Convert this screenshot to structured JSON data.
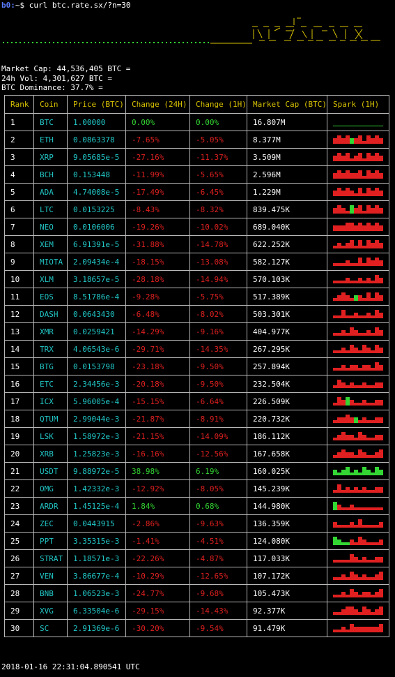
{
  "prompt": {
    "user": "b0:",
    "path": "~$",
    "command": "curl btc.rate.sx/?n=30"
  },
  "banner": {
    "ascii_art": [
      "  _ _ _ _ _ _ _ _ _ _  ",
      " |_)|_ (_|_ |_ (_/\\ ",
      " |_)|_ __|_|_ __)/\\_ "
    ],
    "left_dots_color": "#33d633",
    "art_color": "#d8c200"
  },
  "stats": {
    "market_cap": "Market Cap: 44,536,405 BTC =",
    "volume": "24h Vol: 4,301,627 BTC =",
    "dominance": "BTC Dominance: 37.7% ="
  },
  "table": {
    "headers": [
      "Rank",
      "Coin",
      "Price (BTC)",
      "Change (24H)",
      "Change (1H)",
      "Market Cap (BTC)",
      "Spark (1H)"
    ],
    "rows": [
      {
        "rank": "1",
        "coin": "BTC",
        "price": "1.00000",
        "ch24": "0.00%",
        "ch1": "0.00%",
        "cap": "16.807M",
        "spark": [
          0,
          0,
          0,
          0,
          0,
          0,
          0,
          0,
          0,
          0,
          0,
          0
        ]
      },
      {
        "rank": "2",
        "coin": "ETH",
        "price": "0.0863378",
        "ch24": "-7.65%",
        "ch1": "-5.05%",
        "cap": "8.377M",
        "spark": [
          -2,
          -3,
          -2,
          -3,
          2,
          -2,
          -3,
          -1,
          -3,
          -2,
          -3,
          -2
        ]
      },
      {
        "rank": "3",
        "coin": "XRP",
        "price": "9.05685e-5",
        "ch24": "-27.16%",
        "ch1": "-11.37%",
        "cap": "3.509M",
        "spark": [
          -2,
          -3,
          -2,
          -3,
          -1,
          -2,
          -3,
          -1,
          -3,
          -2,
          -3,
          -2
        ]
      },
      {
        "rank": "4",
        "coin": "BCH",
        "price": "0.153448",
        "ch24": "-11.99%",
        "ch1": "-5.65%",
        "cap": "2.596M",
        "spark": [
          -2,
          -3,
          -2,
          -3,
          -2,
          -2,
          -3,
          -1,
          -3,
          -2,
          -3,
          -2
        ]
      },
      {
        "rank": "5",
        "coin": "ADA",
        "price": "4.74008e-5",
        "ch24": "-17.49%",
        "ch1": "-6.45%",
        "cap": "1.229M",
        "spark": [
          -2,
          -3,
          -2,
          -3,
          -2,
          -1,
          -3,
          -1,
          -3,
          -2,
          -3,
          -2
        ]
      },
      {
        "rank": "6",
        "coin": "LTC",
        "price": "0.0153225",
        "ch24": "-8.43%",
        "ch1": "-8.32%",
        "cap": "839.475K",
        "spark": [
          -2,
          -3,
          -2,
          -1,
          3,
          -2,
          -3,
          -1,
          -3,
          -2,
          -3,
          -2
        ]
      },
      {
        "rank": "7",
        "coin": "NEO",
        "price": "0.0106006",
        "ch24": "-19.26%",
        "ch1": "-10.02%",
        "cap": "689.040K",
        "spark": [
          -2,
          -2,
          -2,
          -3,
          -3,
          -2,
          -3,
          -2,
          -3,
          -2,
          -3,
          -2
        ]
      },
      {
        "rank": "8",
        "coin": "XEM",
        "price": "6.91391e-5",
        "ch24": "-31.88%",
        "ch1": "-14.78%",
        "cap": "622.252K",
        "spark": [
          -1,
          -2,
          -1,
          -2,
          -3,
          -1,
          -3,
          -1,
          -3,
          -2,
          -3,
          -2
        ]
      },
      {
        "rank": "9",
        "coin": "MIOTA",
        "price": "2.09434e-4",
        "ch24": "-18.15%",
        "ch1": "-13.08%",
        "cap": "582.127K",
        "spark": [
          -1,
          -1,
          -1,
          -2,
          -1,
          -1,
          -3,
          -1,
          -3,
          -2,
          -3,
          -2
        ]
      },
      {
        "rank": "10",
        "coin": "XLM",
        "price": "3.18657e-5",
        "ch24": "-28.18%",
        "ch1": "-14.94%",
        "cap": "570.103K",
        "spark": [
          -1,
          -1,
          -1,
          -2,
          -1,
          -1,
          -2,
          -1,
          -2,
          -1,
          -3,
          -2
        ]
      },
      {
        "rank": "11",
        "coin": "EOS",
        "price": "8.51786e-4",
        "ch24": "-9.28%",
        "ch1": "-5.75%",
        "cap": "517.389K",
        "spark": [
          -1,
          -2,
          -3,
          -2,
          -1,
          2,
          -2,
          -1,
          -3,
          -1,
          -3,
          -2
        ]
      },
      {
        "rank": "12",
        "coin": "DASH",
        "price": "0.0643430",
        "ch24": "-6.48%",
        "ch1": "-8.02%",
        "cap": "503.301K",
        "spark": [
          -1,
          -1,
          -3,
          -1,
          -1,
          -2,
          -1,
          -1,
          -2,
          -1,
          -3,
          -2
        ]
      },
      {
        "rank": "13",
        "coin": "XMR",
        "price": "0.0259421",
        "ch24": "-14.29%",
        "ch1": "-9.16%",
        "cap": "404.977K",
        "spark": [
          -1,
          -1,
          -2,
          -1,
          -3,
          -2,
          -1,
          -1,
          -2,
          -1,
          -3,
          -2
        ]
      },
      {
        "rank": "14",
        "coin": "TRX",
        "price": "4.06543e-6",
        "ch24": "-29.71%",
        "ch1": "-14.35%",
        "cap": "267.295K",
        "spark": [
          -1,
          -1,
          -2,
          -1,
          -3,
          -2,
          -1,
          -3,
          -2,
          -1,
          -3,
          -2
        ]
      },
      {
        "rank": "15",
        "coin": "BTG",
        "price": "0.0153798",
        "ch24": "-23.18%",
        "ch1": "-9.50%",
        "cap": "257.894K",
        "spark": [
          -1,
          -1,
          -2,
          -1,
          -2,
          -2,
          -1,
          -2,
          -2,
          -1,
          -3,
          -2
        ]
      },
      {
        "rank": "16",
        "coin": "ETC",
        "price": "2.34456e-3",
        "ch24": "-20.18%",
        "ch1": "-9.50%",
        "cap": "232.504K",
        "spark": [
          -1,
          -3,
          -2,
          -1,
          -2,
          -1,
          -1,
          -2,
          -1,
          -1,
          -2,
          -2
        ]
      },
      {
        "rank": "17",
        "coin": "ICX",
        "price": "5.96005e-4",
        "ch24": "-15.15%",
        "ch1": "-6.64%",
        "cap": "226.509K",
        "spark": [
          -1,
          -3,
          -2,
          3,
          -2,
          -1,
          -1,
          -2,
          -1,
          -1,
          -2,
          -2
        ]
      },
      {
        "rank": "18",
        "coin": "QTUM",
        "price": "2.99044e-3",
        "ch24": "-21.87%",
        "ch1": "-8.91%",
        "cap": "220.732K",
        "spark": [
          -1,
          -2,
          -2,
          -3,
          -2,
          2,
          -1,
          -2,
          -1,
          -1,
          -2,
          -2
        ]
      },
      {
        "rank": "19",
        "coin": "LSK",
        "price": "1.58972e-3",
        "ch24": "-21.15%",
        "ch1": "-14.09%",
        "cap": "186.112K",
        "spark": [
          -1,
          -2,
          -3,
          -2,
          -2,
          -1,
          -3,
          -2,
          -1,
          -1,
          -2,
          -2
        ]
      },
      {
        "rank": "20",
        "coin": "XRB",
        "price": "1.25823e-3",
        "ch24": "-16.16%",
        "ch1": "-12.56%",
        "cap": "167.658K",
        "spark": [
          -1,
          -2,
          -3,
          -2,
          -2,
          -1,
          -3,
          -2,
          -1,
          -1,
          -2,
          -3
        ]
      },
      {
        "rank": "21",
        "coin": "USDT",
        "price": "9.88972e-5",
        "ch24": "38.98%",
        "ch1": "6.19%",
        "cap": "160.025K",
        "spark": [
          2,
          1,
          2,
          3,
          1,
          2,
          1,
          3,
          2,
          1,
          3,
          2
        ]
      },
      {
        "rank": "22",
        "coin": "OMG",
        "price": "1.42332e-3",
        "ch24": "-12.92%",
        "ch1": "-8.05%",
        "cap": "145.239K",
        "spark": [
          -1,
          -3,
          -1,
          -2,
          -1,
          -2,
          -1,
          -2,
          -1,
          -1,
          -2,
          -2
        ]
      },
      {
        "rank": "23",
        "coin": "ARDR",
        "price": "1.45125e-4",
        "ch24": "1.84%",
        "ch1": "0.68%",
        "cap": "144.980K",
        "spark": [
          3,
          -2,
          -1,
          -1,
          -2,
          -1,
          -1,
          -1,
          -1,
          -1,
          -1,
          -1
        ]
      },
      {
        "rank": "24",
        "coin": "ZEC",
        "price": "0.0443915",
        "ch24": "-2.86%",
        "ch1": "-9.63%",
        "cap": "136.359K",
        "spark": [
          -2,
          -1,
          -1,
          -1,
          -2,
          -1,
          -3,
          -1,
          -1,
          -1,
          -1,
          -2
        ]
      },
      {
        "rank": "25",
        "coin": "PPT",
        "price": "3.35315e-3",
        "ch24": "-1.41%",
        "ch1": "-4.51%",
        "cap": "124.080K",
        "spark": [
          3,
          2,
          1,
          1,
          -2,
          -1,
          -3,
          -2,
          -1,
          -1,
          -1,
          -2
        ]
      },
      {
        "rank": "26",
        "coin": "STRAT",
        "price": "1.18571e-3",
        "ch24": "-22.26%",
        "ch1": "-4.87%",
        "cap": "117.033K",
        "spark": [
          -1,
          -1,
          -1,
          -1,
          -3,
          -2,
          -1,
          -2,
          -1,
          -1,
          -2,
          -2
        ]
      },
      {
        "rank": "27",
        "coin": "VEN",
        "price": "3.86677e-4",
        "ch24": "-10.29%",
        "ch1": "-12.65%",
        "cap": "107.172K",
        "spark": [
          -1,
          -1,
          -2,
          -1,
          -3,
          -2,
          -1,
          -2,
          -1,
          -1,
          -2,
          -3
        ]
      },
      {
        "rank": "28",
        "coin": "BNB",
        "price": "1.06523e-3",
        "ch24": "-24.77%",
        "ch1": "-9.68%",
        "cap": "105.473K",
        "spark": [
          -1,
          -1,
          -2,
          -1,
          -3,
          -2,
          -1,
          -2,
          -2,
          -1,
          -2,
          -3
        ]
      },
      {
        "rank": "29",
        "coin": "XVG",
        "price": "6.33504e-6",
        "ch24": "-29.15%",
        "ch1": "-14.43%",
        "cap": "92.377K",
        "spark": [
          -1,
          -1,
          -2,
          -3,
          -3,
          -2,
          -1,
          -3,
          -2,
          -1,
          -2,
          -3
        ]
      },
      {
        "rank": "30",
        "coin": "SC",
        "price": "2.91369e-6",
        "ch24": "-30.20%",
        "ch1": "-9.54%",
        "cap": "91.479K",
        "spark": [
          -1,
          -1,
          -2,
          -1,
          -3,
          -2,
          -2,
          -2,
          -2,
          -2,
          -2,
          -3
        ]
      }
    ]
  },
  "footer": {
    "timestamp": "2018-01-16 22:31:04.890541 UTC"
  },
  "colors": {
    "header": "#d8c200",
    "coin": "#22c6c6",
    "negative": "#e02020",
    "positive": "#33d633",
    "border": "#b8b8b8"
  }
}
